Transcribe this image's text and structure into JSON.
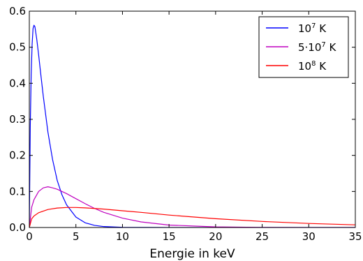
{
  "chart_data": {
    "type": "line",
    "xlabel": "Energie in keV",
    "ylabel": "",
    "xlim": [
      0,
      35
    ],
    "ylim": [
      0,
      0.6
    ],
    "xticks": [
      0,
      5,
      10,
      15,
      20,
      25,
      30,
      35
    ],
    "xtick_labels": [
      "0",
      "5",
      "10",
      "15",
      "20",
      "25",
      "30",
      "35"
    ],
    "yticks": [
      0,
      0.1,
      0.2,
      0.3,
      0.4,
      0.5,
      0.6
    ],
    "ytick_labels": [
      "0.0",
      "0.1",
      "0.2",
      "0.3",
      "0.4",
      "0.5",
      "0.6"
    ],
    "grid": false,
    "legend_position": "top-right",
    "series": [
      {
        "name": "10^7 K",
        "legend_base": "10",
        "legend_exp": "7",
        "legend_unit": "K",
        "color": "#0000ff",
        "x": [
          0,
          0.1,
          0.2,
          0.3,
          0.4,
          0.5,
          0.6,
          0.8,
          1.0,
          1.2,
          1.5,
          2.0,
          2.5,
          3.0,
          3.5,
          4.0,
          5.0,
          6.0,
          7.0,
          8.0,
          10.0,
          15.0,
          20.0,
          25.0,
          30.0,
          35.0
        ],
        "y": [
          0,
          0.278,
          0.423,
          0.508,
          0.552,
          0.561,
          0.557,
          0.522,
          0.479,
          0.432,
          0.364,
          0.264,
          0.188,
          0.13,
          0.091,
          0.063,
          0.029,
          0.013,
          0.0059,
          0.0026,
          0.0005,
          0.0,
          0.0,
          0.0,
          0.0,
          0.0
        ]
      },
      {
        "name": "5·10^7 K",
        "legend_base": "5·10",
        "legend_exp": "7",
        "legend_unit": "K",
        "color": "#bf00bf",
        "x": [
          0,
          0.25,
          0.5,
          1.0,
          1.5,
          2.0,
          2.5,
          3.0,
          4.0,
          5.0,
          6.0,
          7.0,
          8.0,
          10.0,
          12.0,
          15.0,
          20.0,
          25.0,
          30.0,
          35.0
        ],
        "y": [
          0,
          0.056,
          0.077,
          0.1,
          0.11,
          0.113,
          0.11,
          0.106,
          0.094,
          0.08,
          0.066,
          0.053,
          0.042,
          0.026,
          0.0155,
          0.0068,
          0.0017,
          0.0004,
          0.0001,
          0.0
        ]
      },
      {
        "name": "10^8 K",
        "legend_base": "10",
        "legend_exp": "8",
        "legend_unit": "K",
        "color": "#ff0000",
        "x": [
          0,
          0.25,
          0.5,
          1.0,
          2.0,
          3.0,
          4.0,
          5.0,
          6.0,
          7.0,
          8.0,
          10.0,
          12.0,
          15.0,
          20.0,
          25.0,
          30.0,
          35.0
        ],
        "y": [
          0,
          0.024,
          0.032,
          0.041,
          0.05,
          0.054,
          0.0555,
          0.0555,
          0.0545,
          0.0528,
          0.051,
          0.0465,
          0.042,
          0.0345,
          0.0245,
          0.0168,
          0.0112,
          0.0074
        ]
      }
    ]
  }
}
